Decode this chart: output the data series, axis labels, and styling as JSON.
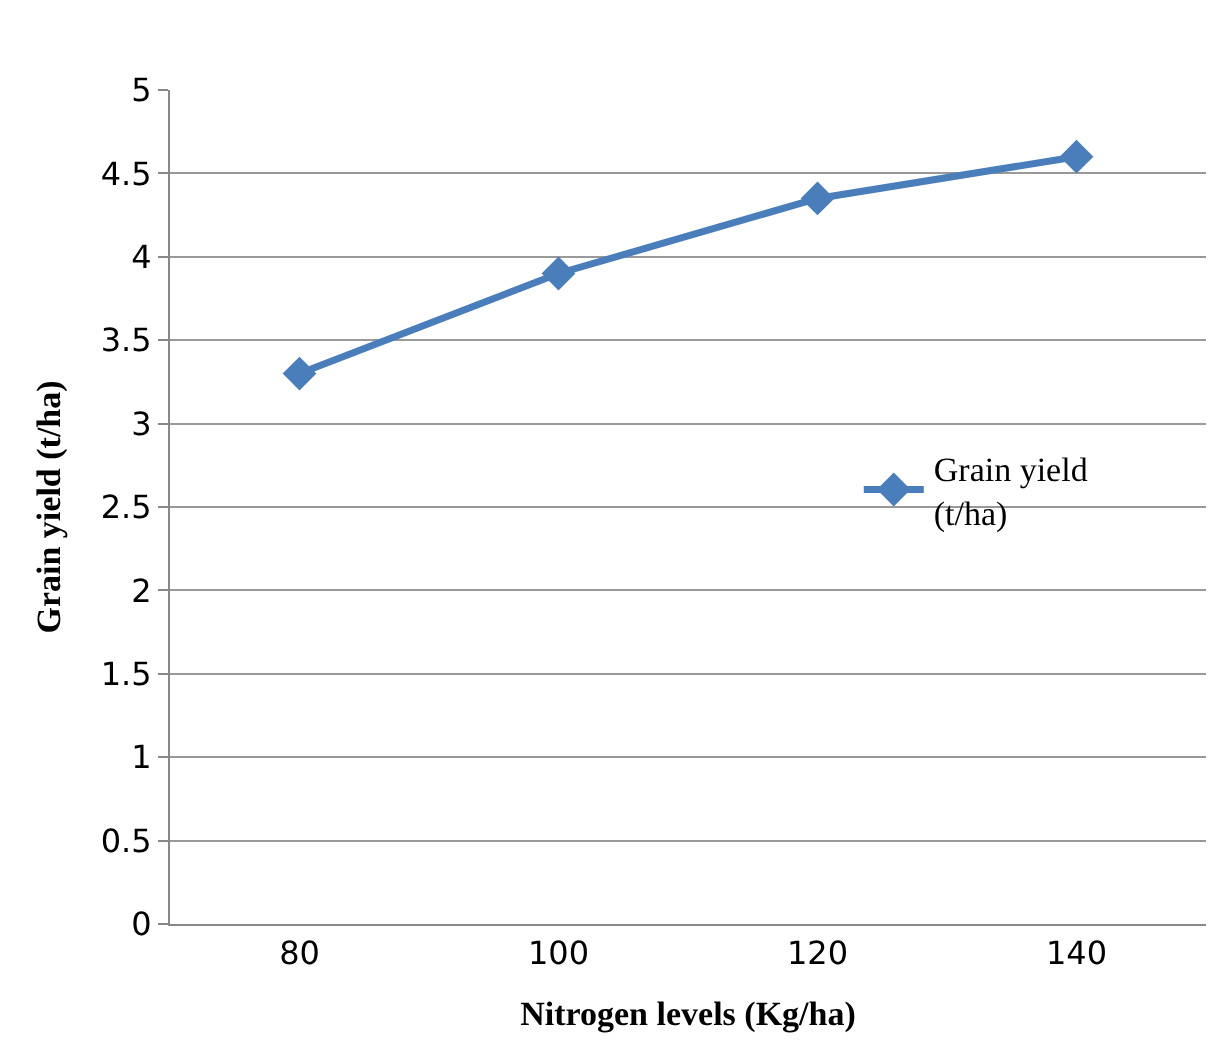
{
  "chart_data": {
    "type": "line",
    "xlabel": "Nitrogen levels (Kg/ha)",
    "ylabel": "Grain yield (t/ha)",
    "categories": [
      "80",
      "100",
      "120",
      "140"
    ],
    "series": [
      {
        "name": "Grain yield (t/ha)",
        "color": "#4a7ebb",
        "values": [
          3.3,
          3.9,
          4.35,
          4.6
        ]
      }
    ],
    "ylim": [
      0,
      5
    ],
    "yticks": [
      0,
      0.5,
      1,
      1.5,
      2,
      2.5,
      3,
      3.5,
      4,
      4.5,
      5
    ],
    "grid": "y",
    "legend": "right",
    "marker": "diamond",
    "line_style": "solid"
  }
}
